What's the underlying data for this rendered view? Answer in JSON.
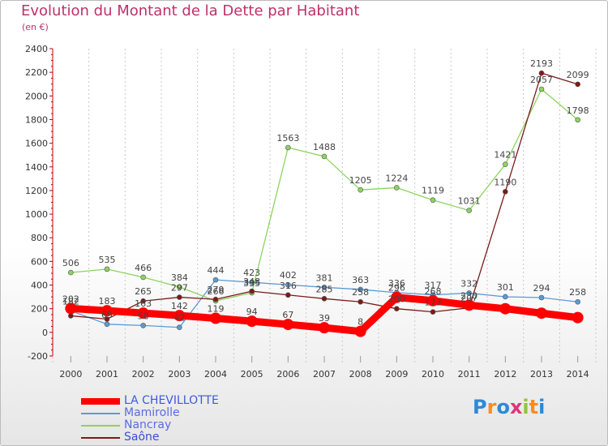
{
  "chart_data": {
    "type": "line",
    "title": "Evolution du Montant de la Dette par Habitant",
    "subtitle": "(en €)",
    "x": [
      "2000",
      "2001",
      "2002",
      "2003",
      "2004",
      "2005",
      "2006",
      "2007",
      "2008",
      "2009",
      "2010",
      "2011",
      "2012",
      "2013",
      "2014"
    ],
    "ylim": [
      -200,
      2400
    ],
    "yticks": [
      -200,
      0,
      200,
      400,
      600,
      800,
      1000,
      1200,
      1400,
      1600,
      1800,
      2000,
      2200,
      2400
    ],
    "grid": "dashed vertical",
    "legend_position": "bottom-left",
    "series": [
      {
        "name": "LA CHEVILLOTTE",
        "color": "#ff0000",
        "values": [
          202,
          183,
          163,
          142,
          119,
          94,
          67,
          39,
          8,
          296,
          268,
          230,
          200,
          162,
          125
        ],
        "labels": [
          "202",
          "183",
          "163",
          "142",
          "119",
          "94",
          "67",
          "39",
          "8",
          "296",
          "268",
          "230",
          "",
          "",
          ""
        ]
      },
      {
        "name": "Mamirolle",
        "color": "#5b9bd5",
        "values": [
          182,
          69,
          58,
          42,
          444,
          423,
          402,
          381,
          363,
          336,
          317,
          332,
          301,
          294,
          258
        ],
        "labels": [
          "182",
          "69",
          "58",
          "42",
          "444",
          "423",
          "402",
          "381",
          "363",
          "336",
          "317",
          "332",
          "301",
          "294",
          "258"
        ]
      },
      {
        "name": "Nancray",
        "color": "#8dd35f",
        "values": [
          506,
          535,
          466,
          384,
          266,
          335,
          1563,
          1488,
          1205,
          1224,
          1119,
          1031,
          1421,
          2057,
          1798
        ],
        "labels": [
          "506",
          "535",
          "466",
          "384",
          "266",
          "335",
          "1563",
          "1488",
          "1205",
          "1224",
          "1119",
          "1031",
          "1421",
          "2057",
          "1798"
        ]
      },
      {
        "name": "Saône",
        "color": "#7b1a1a",
        "values": [
          140,
          112,
          265,
          297,
          279,
          348,
          316,
          285,
          258,
          200,
          173,
          207,
          1190,
          2193,
          2099
        ],
        "labels": [
          "",
          "",
          "265",
          "297",
          "279",
          "348",
          "316",
          "285",
          "258",
          "200",
          "173",
          "207",
          "1190",
          "2193",
          "2099"
        ]
      }
    ]
  },
  "logo": {
    "text": "Proxiti"
  }
}
